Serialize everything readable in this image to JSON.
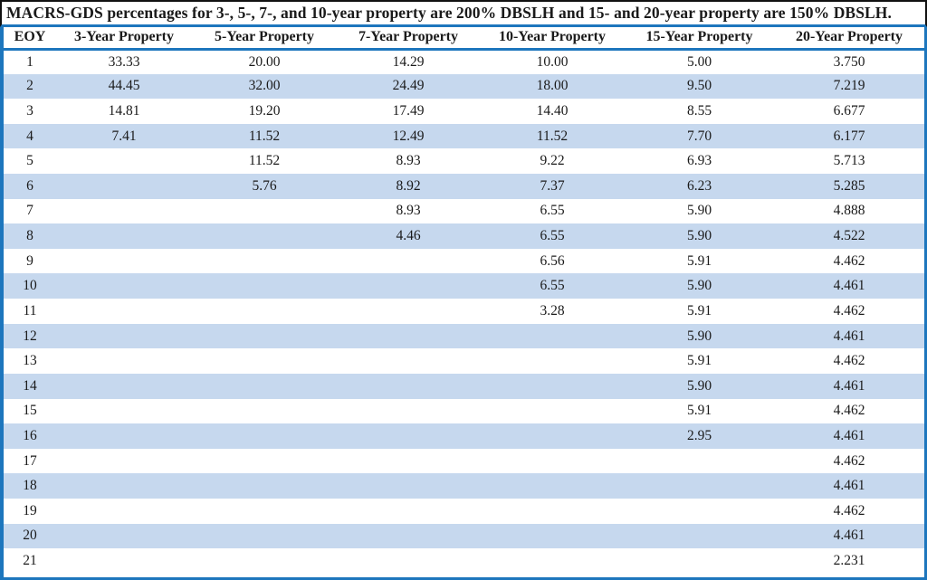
{
  "title": "MACRS-GDS percentages for 3-, 5-, 7-, and 10-year property are 200% DBSLH and 15- and 20-year property are 150% DBSLH.",
  "table": {
    "columns": [
      "EOY",
      "3-Year Property",
      "5-Year Property",
      "7-Year Property",
      "10-Year Property",
      "15-Year Property",
      "20-Year Property"
    ],
    "rows": [
      [
        "1",
        "33.33",
        "20.00",
        "14.29",
        "10.00",
        "5.00",
        "3.750"
      ],
      [
        "2",
        "44.45",
        "32.00",
        "24.49",
        "18.00",
        "9.50",
        "7.219"
      ],
      [
        "3",
        "14.81",
        "19.20",
        "17.49",
        "14.40",
        "8.55",
        "6.677"
      ],
      [
        "4",
        "7.41",
        "11.52",
        "12.49",
        "11.52",
        "7.70",
        "6.177"
      ],
      [
        "5",
        "",
        "11.52",
        "8.93",
        "9.22",
        "6.93",
        "5.713"
      ],
      [
        "6",
        "",
        "5.76",
        "8.92",
        "7.37",
        "6.23",
        "5.285"
      ],
      [
        "7",
        "",
        "",
        "8.93",
        "6.55",
        "5.90",
        "4.888"
      ],
      [
        "8",
        "",
        "",
        "4.46",
        "6.55",
        "5.90",
        "4.522"
      ],
      [
        "9",
        "",
        "",
        "",
        "6.56",
        "5.91",
        "4.462"
      ],
      [
        "10",
        "",
        "",
        "",
        "6.55",
        "5.90",
        "4.461"
      ],
      [
        "11",
        "",
        "",
        "",
        "3.28",
        "5.91",
        "4.462"
      ],
      [
        "12",
        "",
        "",
        "",
        "",
        "5.90",
        "4.461"
      ],
      [
        "13",
        "",
        "",
        "",
        "",
        "5.91",
        "4.462"
      ],
      [
        "14",
        "",
        "",
        "",
        "",
        "5.90",
        "4.461"
      ],
      [
        "15",
        "",
        "",
        "",
        "",
        "5.91",
        "4.462"
      ],
      [
        "16",
        "",
        "",
        "",
        "",
        "2.95",
        "4.461"
      ],
      [
        "17",
        "",
        "",
        "",
        "",
        "",
        "4.462"
      ],
      [
        "18",
        "",
        "",
        "",
        "",
        "",
        "4.461"
      ],
      [
        "19",
        "",
        "",
        "",
        "",
        "",
        "4.462"
      ],
      [
        "20",
        "",
        "",
        "",
        "",
        "",
        "4.461"
      ],
      [
        "21",
        "",
        "",
        "",
        "",
        "",
        "2.231"
      ]
    ]
  },
  "colors": {
    "rule_blue": "#1d76bd",
    "stripe_blue": "#c6d8ee",
    "frame_black": "#111111",
    "text": "#1a1a1a"
  }
}
